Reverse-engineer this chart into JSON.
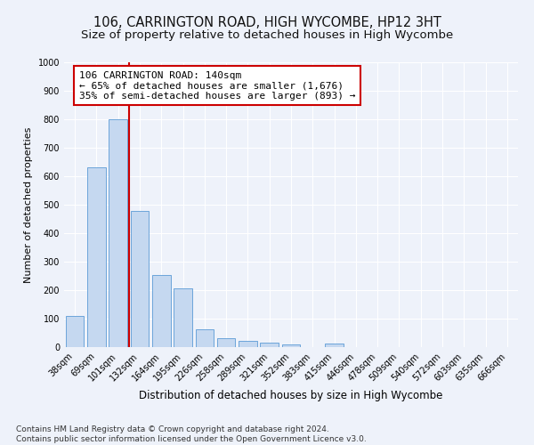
{
  "title1": "106, CARRINGTON ROAD, HIGH WYCOMBE, HP12 3HT",
  "title2": "Size of property relative to detached houses in High Wycombe",
  "xlabel": "Distribution of detached houses by size in High Wycombe",
  "ylabel": "Number of detached properties",
  "categories": [
    "38sqm",
    "69sqm",
    "101sqm",
    "132sqm",
    "164sqm",
    "195sqm",
    "226sqm",
    "258sqm",
    "289sqm",
    "321sqm",
    "352sqm",
    "383sqm",
    "415sqm",
    "446sqm",
    "478sqm",
    "509sqm",
    "540sqm",
    "572sqm",
    "603sqm",
    "635sqm",
    "666sqm"
  ],
  "values": [
    110,
    630,
    800,
    478,
    252,
    205,
    62,
    30,
    22,
    15,
    10,
    0,
    12,
    0,
    0,
    0,
    0,
    0,
    0,
    0,
    0
  ],
  "bar_color": "#c5d8f0",
  "bar_edge_color": "#5b9bd5",
  "vline_color": "#cc0000",
  "annotation_text": "106 CARRINGTON ROAD: 140sqm\n← 65% of detached houses are smaller (1,676)\n35% of semi-detached houses are larger (893) →",
  "annotation_box_color": "#ffffff",
  "annotation_box_edge": "#cc0000",
  "ylim": [
    0,
    1000
  ],
  "yticks": [
    0,
    100,
    200,
    300,
    400,
    500,
    600,
    700,
    800,
    900,
    1000
  ],
  "footnote": "Contains HM Land Registry data © Crown copyright and database right 2024.\nContains public sector information licensed under the Open Government Licence v3.0.",
  "bg_color": "#eef2fa",
  "grid_color": "#ffffff",
  "title1_fontsize": 10.5,
  "title2_fontsize": 9.5,
  "xlabel_fontsize": 8.5,
  "ylabel_fontsize": 8,
  "tick_fontsize": 7,
  "annotation_fontsize": 8,
  "footnote_fontsize": 6.5
}
